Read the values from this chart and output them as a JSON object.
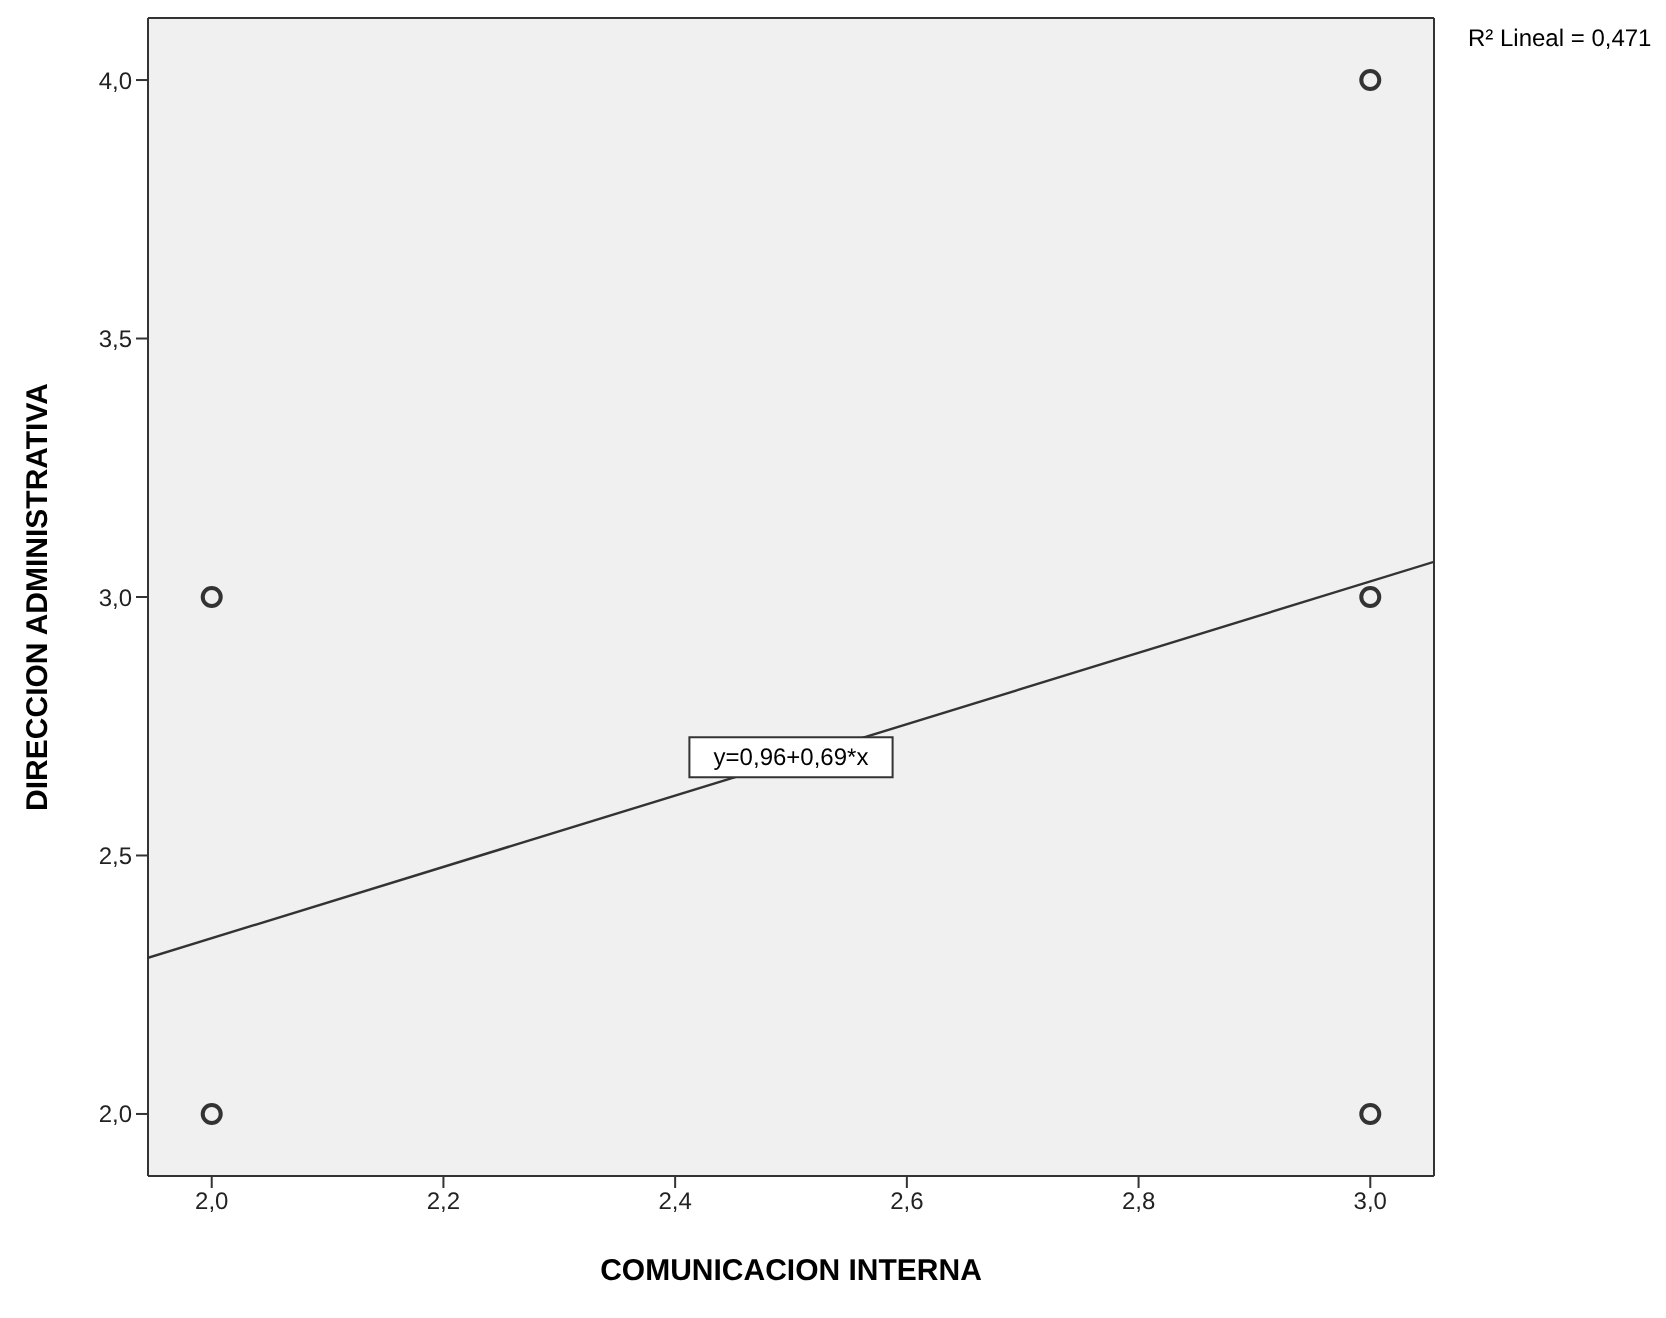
{
  "chart_data": {
    "type": "scatter",
    "xlabel": "COMUNICACION INTERNA",
    "ylabel": "DIRECCION ADMINISTRATIVA",
    "series": [
      {
        "color": "#333333",
        "x": [
          2,
          2,
          3,
          3,
          3
        ],
        "values": [
          3,
          2,
          4,
          3,
          2
        ],
        "marker": "circle"
      },
      {
        "type": "line",
        "color": "#333333",
        "x": [
          1.945,
          3.055
        ],
        "values": [
          2.302,
          3.068
        ]
      }
    ],
    "xlim": [
      1.945,
      3.055
    ],
    "xticks": [
      {
        "value": 2,
        "label": "2,0"
      },
      {
        "value": 2.2,
        "label": "2,2"
      },
      {
        "value": 2.4,
        "label": "2,4"
      },
      {
        "value": 2.6,
        "label": "2,6"
      },
      {
        "value": 2.8,
        "label": "2,8"
      },
      {
        "value": 3,
        "label": "3,0"
      }
    ],
    "ylim": [
      1.88,
      4.12
    ],
    "yticks": [
      {
        "value": 2,
        "label": "2,0"
      },
      {
        "value": 2.5,
        "label": "2,5"
      },
      {
        "value": 3,
        "label": "3,0"
      },
      {
        "value": 3.5,
        "label": "3,5"
      },
      {
        "value": 4,
        "label": "4,0"
      }
    ],
    "annotations": [
      {
        "text": "y=0,96+0,69*x",
        "x": 2.5,
        "y": 2.69
      },
      "R² Lineal = 0,471"
    ],
    "grid": false
  }
}
